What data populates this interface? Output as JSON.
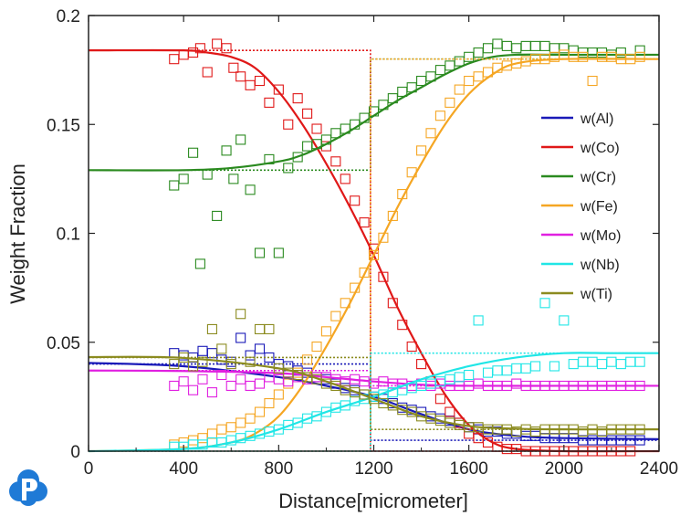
{
  "chart_data": {
    "type": "line",
    "xlabel": "Distance[micrometer]",
    "ylabel": "Weight Fraction",
    "xlim": [
      0,
      2400
    ],
    "ylim": [
      0,
      0.2
    ],
    "xticks": [
      "0",
      "400",
      "800",
      "1200",
      "1600",
      "2000",
      "2400"
    ],
    "yticks": [
      "0",
      "0.05",
      "0.1",
      "0.15",
      "0.2"
    ],
    "grid": false,
    "legend_position": "right",
    "interface_x": 1186,
    "series": [
      {
        "name": "w(Al)",
        "color": "#1a1ab8",
        "initial_left": 0.04,
        "initial_right": 0.005,
        "calc_x": [
          0,
          400,
          800,
          1000,
          1200,
          1400,
          1600,
          1800,
          2000,
          2400
        ],
        "calc_y": [
          0.0405,
          0.039,
          0.034,
          0.03,
          0.025,
          0.017,
          0.01,
          0.007,
          0.006,
          0.0055
        ],
        "exp_x": [
          360,
          400,
          440,
          480,
          520,
          560,
          600,
          640,
          680,
          720,
          760,
          800,
          840,
          880,
          920,
          960,
          1000,
          1040,
          1080,
          1120,
          1160,
          1200,
          1240,
          1280,
          1320,
          1360,
          1400,
          1440,
          1480,
          1520,
          1560,
          1600,
          1640,
          1680,
          1720,
          1760,
          1800,
          1840,
          1880,
          1920,
          1960,
          2000,
          2040,
          2080,
          2120,
          2160,
          2200,
          2240,
          2280,
          2320
        ],
        "exp_y": [
          0.045,
          0.044,
          0.043,
          0.046,
          0.045,
          0.042,
          0.041,
          0.052,
          0.044,
          0.047,
          0.043,
          0.04,
          0.039,
          0.037,
          0.036,
          0.034,
          0.033,
          0.031,
          0.029,
          0.028,
          0.026,
          0.025,
          0.024,
          0.022,
          0.02,
          0.019,
          0.018,
          0.016,
          0.015,
          0.014,
          0.013,
          0.011,
          0.01,
          0.009,
          0.009,
          0.008,
          0.008,
          0.007,
          0.007,
          0.006,
          0.006,
          0.006,
          0.006,
          0.005,
          0.005,
          0.005,
          0.005,
          0.005,
          0.005,
          0.005
        ]
      },
      {
        "name": "w(Co)",
        "color": "#e01818",
        "initial_left": 0.184,
        "initial_right": 0.0,
        "calc_x": [
          0,
          400,
          500,
          600,
          700,
          800,
          900,
          1000,
          1100,
          1200,
          1300,
          1400,
          1500,
          1600,
          1700,
          1800,
          2000,
          2400
        ],
        "calc_y": [
          0.184,
          0.184,
          0.183,
          0.181,
          0.176,
          0.165,
          0.15,
          0.132,
          0.112,
          0.09,
          0.066,
          0.045,
          0.026,
          0.012,
          0.004,
          0.001,
          0.0,
          0.0
        ],
        "exp_x": [
          360,
          400,
          440,
          470,
          500,
          540,
          580,
          610,
          640,
          680,
          720,
          760,
          800,
          840,
          880,
          920,
          960,
          1000,
          1040,
          1080,
          1120,
          1160,
          1200,
          1240,
          1280,
          1320,
          1360,
          1400,
          1440,
          1480,
          1520,
          1560,
          1600,
          1640,
          1680,
          1720,
          1760,
          1800,
          1840,
          1880,
          1920,
          1960,
          2000,
          2040,
          2080,
          2120,
          2160,
          2200,
          2240,
          2280
        ],
        "exp_y": [
          0.18,
          0.182,
          0.183,
          0.185,
          0.174,
          0.187,
          0.185,
          0.176,
          0.172,
          0.168,
          0.17,
          0.16,
          0.166,
          0.15,
          0.162,
          0.155,
          0.148,
          0.14,
          0.133,
          0.125,
          0.115,
          0.105,
          0.093,
          0.08,
          0.068,
          0.058,
          0.048,
          0.04,
          0.032,
          0.024,
          0.018,
          0.013,
          0.008,
          0.006,
          0.004,
          0.002,
          0.001,
          0.001,
          0.0,
          0.0,
          0.0,
          0.0,
          0.0,
          0.0,
          0.0,
          0.0,
          0.0,
          0.0,
          0.0,
          0.0
        ]
      },
      {
        "name": "w(Cr)",
        "color": "#2a8a1f",
        "initial_left": 0.129,
        "initial_right": 0.18,
        "calc_x": [
          0,
          400,
          600,
          800,
          900,
          1000,
          1100,
          1200,
          1300,
          1400,
          1500,
          1600,
          1700,
          1800,
          2000,
          2400
        ],
        "calc_y": [
          0.129,
          0.129,
          0.13,
          0.133,
          0.136,
          0.141,
          0.147,
          0.154,
          0.161,
          0.167,
          0.173,
          0.178,
          0.181,
          0.182,
          0.182,
          0.182
        ],
        "exp_x": [
          360,
          400,
          440,
          470,
          500,
          540,
          580,
          610,
          640,
          680,
          720,
          760,
          800,
          840,
          880,
          920,
          960,
          1000,
          1040,
          1080,
          1120,
          1160,
          1200,
          1240,
          1280,
          1320,
          1360,
          1400,
          1440,
          1480,
          1520,
          1560,
          1600,
          1640,
          1680,
          1720,
          1760,
          1800,
          1840,
          1880,
          1920,
          1960,
          2000,
          2040,
          2080,
          2120,
          2160,
          2200,
          2240,
          2320
        ],
        "exp_y": [
          0.122,
          0.125,
          0.137,
          0.086,
          0.127,
          0.108,
          0.138,
          0.125,
          0.143,
          0.12,
          0.091,
          0.134,
          0.091,
          0.13,
          0.135,
          0.14,
          0.141,
          0.143,
          0.146,
          0.148,
          0.15,
          0.153,
          0.156,
          0.159,
          0.162,
          0.165,
          0.167,
          0.17,
          0.172,
          0.175,
          0.177,
          0.179,
          0.181,
          0.183,
          0.185,
          0.187,
          0.186,
          0.185,
          0.186,
          0.186,
          0.186,
          0.185,
          0.185,
          0.184,
          0.183,
          0.183,
          0.183,
          0.182,
          0.183,
          0.184
        ]
      },
      {
        "name": "w(Fe)",
        "color": "#f5a623",
        "initial_left": 0.0,
        "initial_right": 0.18,
        "calc_x": [
          0,
          400,
          600,
          700,
          800,
          900,
          1000,
          1100,
          1200,
          1300,
          1400,
          1500,
          1600,
          1700,
          1800,
          2000,
          2400
        ],
        "calc_y": [
          0.0,
          0.001,
          0.004,
          0.008,
          0.016,
          0.03,
          0.048,
          0.068,
          0.09,
          0.112,
          0.132,
          0.15,
          0.164,
          0.173,
          0.178,
          0.18,
          0.18
        ],
        "exp_x": [
          360,
          400,
          440,
          480,
          520,
          560,
          600,
          640,
          680,
          720,
          760,
          800,
          840,
          880,
          920,
          960,
          1000,
          1040,
          1080,
          1120,
          1160,
          1200,
          1240,
          1280,
          1320,
          1360,
          1400,
          1440,
          1480,
          1520,
          1560,
          1600,
          1640,
          1680,
          1720,
          1760,
          1800,
          1840,
          1880,
          1920,
          1960,
          2000,
          2040,
          2080,
          2120,
          2160,
          2200,
          2240,
          2280,
          2320
        ],
        "exp_y": [
          0.003,
          0.004,
          0.005,
          0.006,
          0.008,
          0.01,
          0.011,
          0.013,
          0.015,
          0.018,
          0.022,
          0.026,
          0.031,
          0.036,
          0.042,
          0.048,
          0.055,
          0.062,
          0.068,
          0.075,
          0.082,
          0.09,
          0.098,
          0.108,
          0.118,
          0.128,
          0.138,
          0.146,
          0.154,
          0.16,
          0.166,
          0.17,
          0.172,
          0.174,
          0.176,
          0.177,
          0.178,
          0.179,
          0.18,
          0.18,
          0.181,
          0.182,
          0.181,
          0.181,
          0.17,
          0.181,
          0.181,
          0.18,
          0.18,
          0.181
        ]
      },
      {
        "name": "w(Mo)",
        "color": "#e020e0",
        "initial_left": 0.037,
        "initial_right": 0.03,
        "calc_x": [
          0,
          400,
          800,
          1000,
          1200,
          1400,
          1600,
          2000,
          2400
        ],
        "calc_y": [
          0.037,
          0.0368,
          0.0358,
          0.034,
          0.032,
          0.0305,
          0.03,
          0.03,
          0.03
        ],
        "exp_x": [
          360,
          400,
          440,
          480,
          520,
          560,
          600,
          640,
          680,
          720,
          760,
          800,
          840,
          880,
          920,
          960,
          1000,
          1040,
          1080,
          1120,
          1160,
          1200,
          1240,
          1280,
          1320,
          1360,
          1400,
          1440,
          1480,
          1520,
          1560,
          1600,
          1640,
          1680,
          1720,
          1760,
          1800,
          1840,
          1880,
          1920,
          1960,
          2000,
          2040,
          2080,
          2120,
          2160,
          2200,
          2240,
          2280,
          2320
        ],
        "exp_y": [
          0.03,
          0.032,
          0.028,
          0.033,
          0.027,
          0.035,
          0.03,
          0.033,
          0.03,
          0.031,
          0.034,
          0.033,
          0.032,
          0.034,
          0.033,
          0.034,
          0.034,
          0.033,
          0.032,
          0.033,
          0.032,
          0.031,
          0.032,
          0.031,
          0.031,
          0.03,
          0.031,
          0.03,
          0.031,
          0.03,
          0.03,
          0.03,
          0.031,
          0.03,
          0.03,
          0.03,
          0.031,
          0.03,
          0.03,
          0.03,
          0.03,
          0.03,
          0.03,
          0.03,
          0.03,
          0.03,
          0.03,
          0.03,
          0.03,
          0.03
        ]
      },
      {
        "name": "w(Nb)",
        "color": "#20e6e6",
        "initial_left": 0.0,
        "initial_right": 0.045,
        "calc_x": [
          0,
          400,
          600,
          800,
          1000,
          1200,
          1400,
          1600,
          1800,
          2000,
          2200,
          2400
        ],
        "calc_y": [
          0.0,
          0.001,
          0.004,
          0.01,
          0.018,
          0.025,
          0.033,
          0.039,
          0.043,
          0.045,
          0.045,
          0.045
        ],
        "exp_x": [
          360,
          400,
          440,
          480,
          520,
          560,
          600,
          640,
          680,
          720,
          760,
          800,
          840,
          880,
          920,
          960,
          1000,
          1040,
          1080,
          1120,
          1160,
          1200,
          1240,
          1280,
          1320,
          1360,
          1400,
          1440,
          1480,
          1520,
          1560,
          1600,
          1640,
          1680,
          1720,
          1760,
          1800,
          1840,
          1880,
          1920,
          1960,
          2000,
          2040,
          2080,
          2120,
          2160,
          2200,
          2240,
          2280,
          2320
        ],
        "exp_y": [
          0.002,
          0.002,
          0.003,
          0.003,
          0.004,
          0.004,
          0.005,
          0.006,
          0.007,
          0.008,
          0.009,
          0.01,
          0.012,
          0.013,
          0.015,
          0.016,
          0.018,
          0.02,
          0.021,
          0.023,
          0.024,
          0.025,
          0.026,
          0.027,
          0.028,
          0.029,
          0.03,
          0.031,
          0.032,
          0.033,
          0.034,
          0.035,
          0.06,
          0.036,
          0.037,
          0.037,
          0.038,
          0.038,
          0.039,
          0.068,
          0.039,
          0.06,
          0.04,
          0.041,
          0.041,
          0.04,
          0.041,
          0.04,
          0.041,
          0.041
        ]
      },
      {
        "name": "w(Ti)",
        "color": "#8b8b1f",
        "initial_left": 0.043,
        "initial_right": 0.01,
        "calc_x": [
          0,
          400,
          800,
          1000,
          1200,
          1400,
          1600,
          1800,
          2000,
          2400
        ],
        "calc_y": [
          0.0432,
          0.0428,
          0.038,
          0.032,
          0.024,
          0.016,
          0.0115,
          0.0103,
          0.01,
          0.01
        ],
        "exp_x": [
          360,
          400,
          440,
          480,
          520,
          560,
          600,
          640,
          680,
          720,
          760,
          800,
          840,
          880,
          920,
          960,
          1000,
          1040,
          1080,
          1120,
          1160,
          1200,
          1240,
          1280,
          1320,
          1360,
          1400,
          1440,
          1480,
          1520,
          1560,
          1600,
          1640,
          1680,
          1720,
          1760,
          1800,
          1840,
          1880,
          1920,
          1960,
          2000,
          2040,
          2080,
          2120,
          2160,
          2200,
          2240,
          2280,
          2320
        ],
        "exp_y": [
          0.04,
          0.043,
          0.039,
          0.041,
          0.056,
          0.047,
          0.04,
          0.063,
          0.041,
          0.056,
          0.056,
          0.038,
          0.036,
          0.035,
          0.034,
          0.033,
          0.031,
          0.03,
          0.028,
          0.027,
          0.026,
          0.024,
          0.022,
          0.021,
          0.019,
          0.018,
          0.016,
          0.015,
          0.014,
          0.013,
          0.012,
          0.011,
          0.011,
          0.01,
          0.01,
          0.01,
          0.009,
          0.01,
          0.009,
          0.01,
          0.01,
          0.01,
          0.01,
          0.009,
          0.01,
          0.009,
          0.01,
          0.01,
          0.01,
          0.01
        ]
      }
    ]
  },
  "logo": {
    "name": "P-logo-icon",
    "color": "#1f7ad6"
  }
}
